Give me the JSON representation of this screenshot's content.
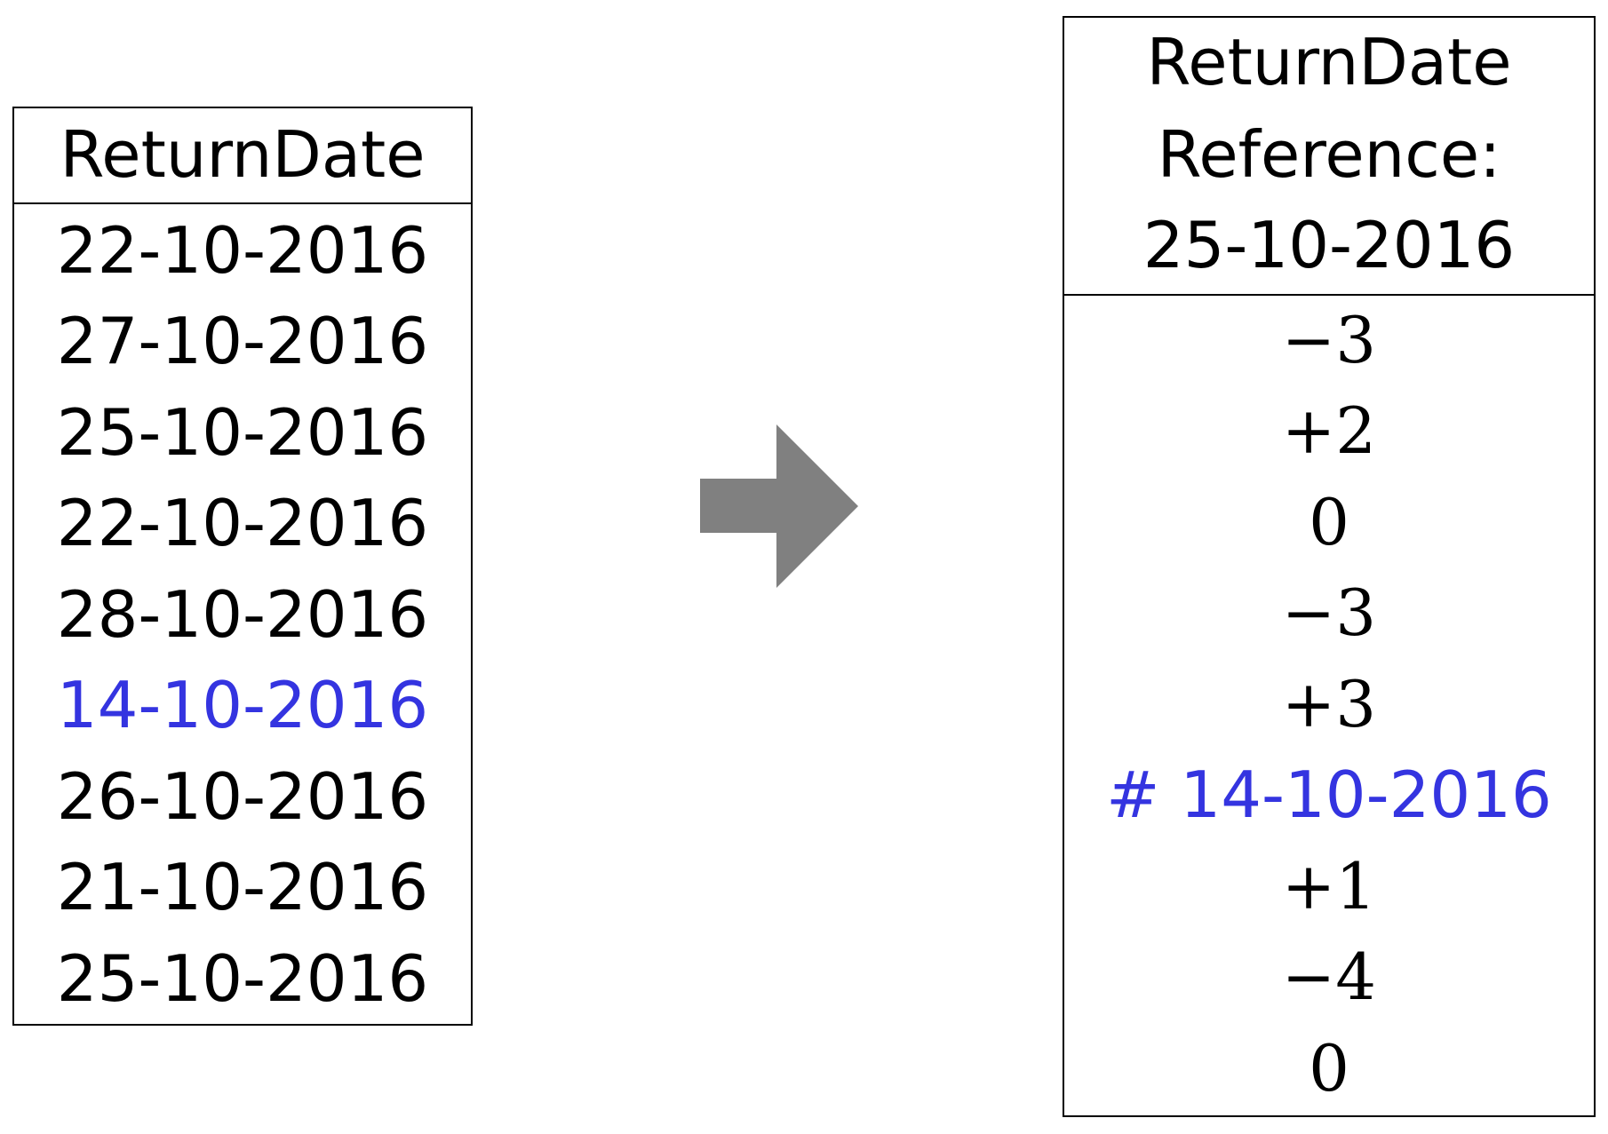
{
  "left_table": {
    "header": "ReturnDate",
    "rows": [
      "22-10-2016",
      "27-10-2016",
      "25-10-2016",
      "22-10-2016",
      "28-10-2016",
      "14-10-2016",
      "26-10-2016",
      "21-10-2016",
      "25-10-2016"
    ],
    "highlight_index": 5
  },
  "arrow_icon": "right-arrow-icon",
  "right_table": {
    "header_lines": [
      "ReturnDate",
      "Reference:",
      "25-10-2016"
    ],
    "rows": [
      "−3",
      "+2",
      "0",
      "−3",
      "+3",
      "# 14-10-2016",
      "+1",
      "−4",
      "0"
    ],
    "highlight_index": 5
  },
  "colors": {
    "text": "#000000",
    "highlight": "#3434e0",
    "arrow": "#808080"
  }
}
